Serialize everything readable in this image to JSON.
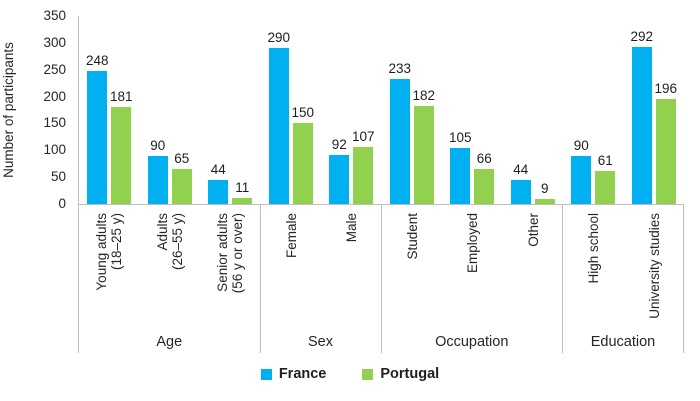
{
  "chart_data": {
    "type": "bar",
    "title": "",
    "ylabel": "Number of participants",
    "xlabel": "",
    "ylim": [
      0,
      350
    ],
    "yticks": [
      0,
      50,
      100,
      150,
      200,
      250,
      300,
      350
    ],
    "grid": false,
    "legend_position": "bottom",
    "series": [
      {
        "name": "France",
        "color": "#00b0f0"
      },
      {
        "name": "Portugal",
        "color": "#92d050"
      }
    ],
    "groups": [
      {
        "label": "Age",
        "categories": [
          {
            "label": "Young adults\n(18–25 y)",
            "values": [
              248,
              181
            ]
          },
          {
            "label": "Adults\n(26–55 y)",
            "values": [
              90,
              65
            ]
          },
          {
            "label": "Senior adults\n(56 y or over)",
            "values": [
              44,
              11
            ]
          }
        ]
      },
      {
        "label": "Sex",
        "categories": [
          {
            "label": "Female",
            "values": [
              290,
              150
            ]
          },
          {
            "label": "Male",
            "values": [
              92,
              107
            ]
          }
        ]
      },
      {
        "label": "Occupation",
        "categories": [
          {
            "label": "Student",
            "values": [
              233,
              182
            ]
          },
          {
            "label": "Employed",
            "values": [
              105,
              66
            ]
          },
          {
            "label": "Other",
            "values": [
              44,
              9
            ]
          }
        ]
      },
      {
        "label": "Education",
        "categories": [
          {
            "label": "High school",
            "values": [
              90,
              61
            ]
          },
          {
            "label": "University studies",
            "values": [
              292,
              196
            ]
          }
        ]
      }
    ],
    "axis_line_color": "#bfbfbf",
    "text_color": "#262626"
  }
}
